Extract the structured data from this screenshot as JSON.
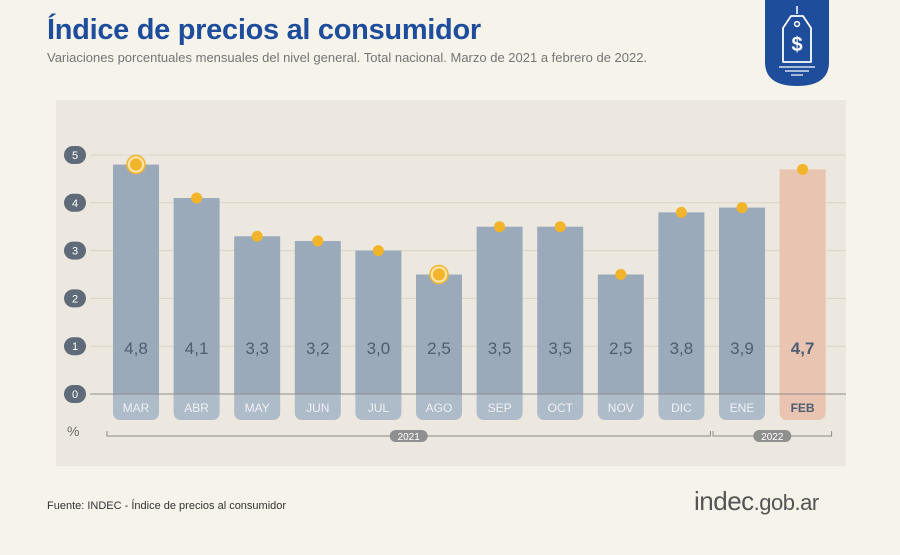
{
  "header": {
    "title": "Índice de precios al consumidor",
    "subtitle": "Variaciones porcentuales mensuales del nivel general. Total nacional. Marzo de 2021 a febrero de 2022."
  },
  "badge": {
    "icon": "price-tag-dollar-icon",
    "color": "#1e4d9c"
  },
  "footer": {
    "source": "Fuente: INDEC - Índice de precios al consumidor",
    "logo_main": "indec",
    "logo_domain": ".gob.ar"
  },
  "chart_data": {
    "type": "bar",
    "categories": [
      "MAR",
      "ABR",
      "MAY",
      "JUN",
      "JUL",
      "AGO",
      "SEP",
      "OCT",
      "NOV",
      "DIC",
      "ENE",
      "FEB"
    ],
    "values": [
      4.8,
      4.1,
      3.3,
      3.2,
      3.0,
      2.5,
      3.5,
      3.5,
      2.5,
      3.8,
      3.9,
      4.7
    ],
    "value_labels": [
      "4,8",
      "4,1",
      "3,3",
      "3,2",
      "3,0",
      "2,5",
      "3,5",
      "3,5",
      "2,5",
      "3,8",
      "3,9",
      "4,7"
    ],
    "markers": [
      4.8,
      4.1,
      3.3,
      3.2,
      3.0,
      2.5,
      3.5,
      3.5,
      2.5,
      3.8,
      3.9,
      4.7
    ],
    "highlighted_markers": [
      "MAR",
      "AGO"
    ],
    "highlight_category": "FEB",
    "yticks": [
      0,
      1,
      2,
      3,
      4,
      5
    ],
    "ylim": [
      0,
      5
    ],
    "ylabel": "%",
    "groups": [
      {
        "label": "2021",
        "from": "MAR",
        "to": "DIC"
      },
      {
        "label": "2022",
        "from": "ENE",
        "to": "FEB"
      }
    ],
    "colors": {
      "bar": "#9aaabb",
      "bar_highlight": "#e8c4b1",
      "marker": "#f2b42a",
      "value_text": "#4e5e72",
      "gridline": "#d8d3c8"
    },
    "grid": true
  }
}
